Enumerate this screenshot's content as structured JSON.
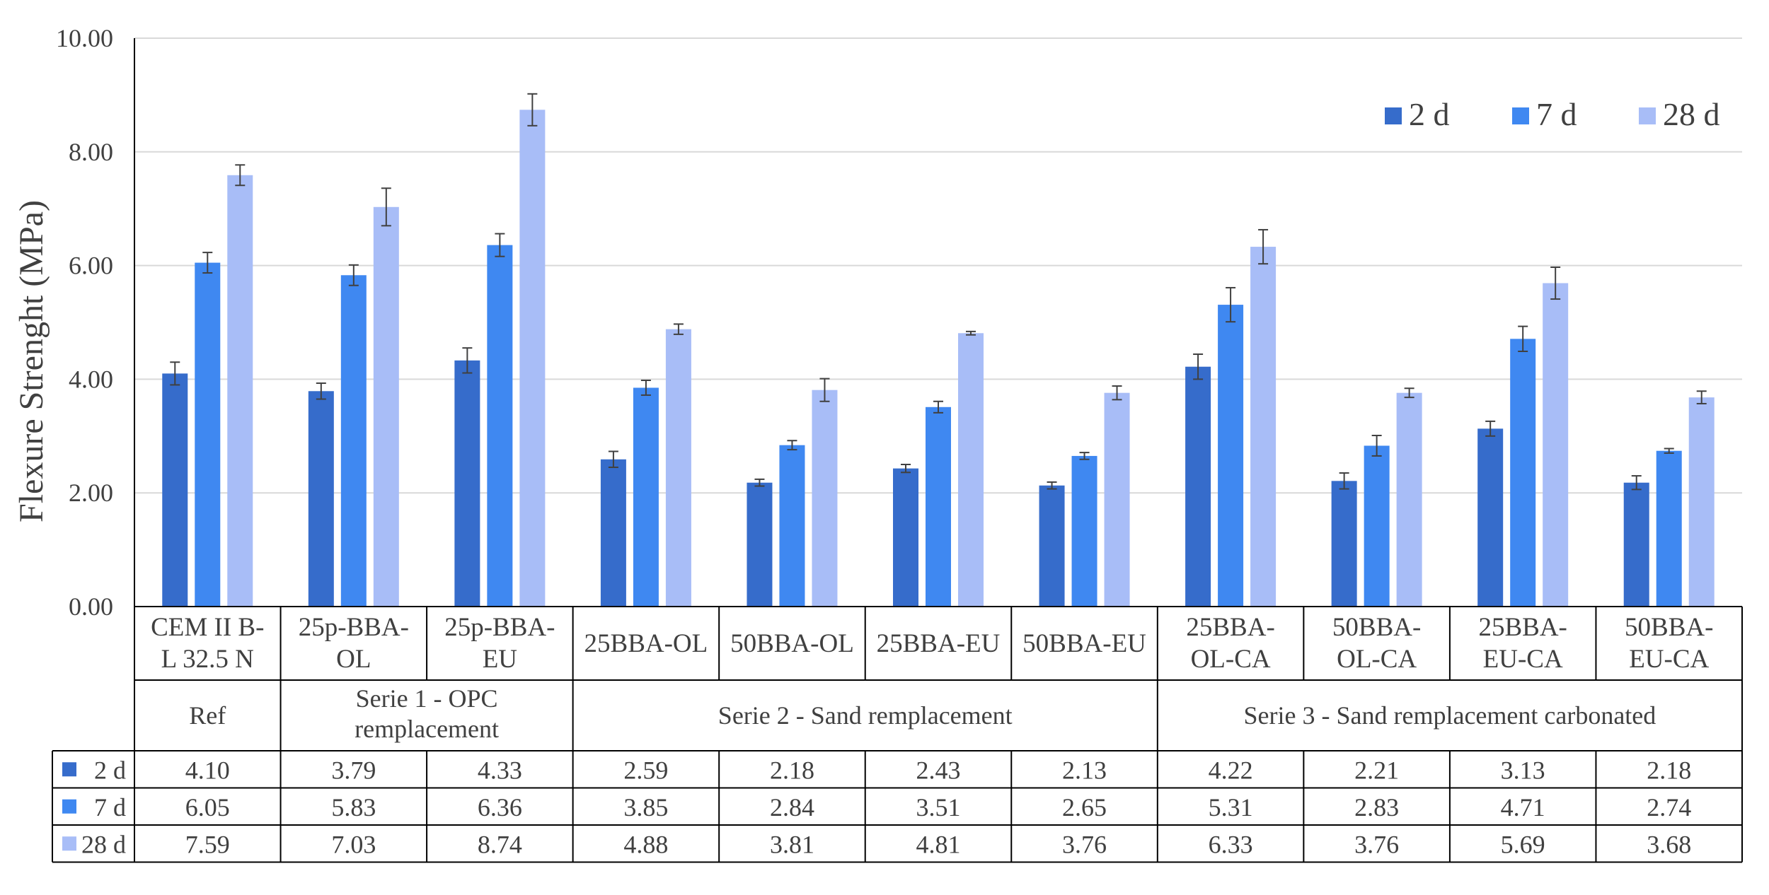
{
  "chart_data": {
    "type": "bar",
    "ylabel": "Flexure Strenght (MPa)",
    "ylim": [
      0,
      10
    ],
    "yticks": [
      "0.00",
      "2.00",
      "4.00",
      "6.00",
      "8.00",
      "10.00"
    ],
    "grid": true,
    "legend_position": "top-right",
    "categories": [
      {
        "line1": "CEM II B-",
        "line2": "L 32.5 N"
      },
      {
        "line1": "25p-BBA-",
        "line2": "OL"
      },
      {
        "line1": "25p-BBA-",
        "line2": "EU"
      },
      {
        "line1": "25BBA-OL",
        "line2": ""
      },
      {
        "line1": "50BBA-OL",
        "line2": ""
      },
      {
        "line1": "25BBA-EU",
        "line2": ""
      },
      {
        "line1": "50BBA-EU",
        "line2": ""
      },
      {
        "line1": "25BBA-",
        "line2": "OL-CA"
      },
      {
        "line1": "50BBA-",
        "line2": "OL-CA"
      },
      {
        "line1": "25BBA-",
        "line2": "EU-CA"
      },
      {
        "line1": "50BBA-",
        "line2": "EU-CA"
      }
    ],
    "groups": [
      {
        "line1": "Ref",
        "line2": "",
        "start": 0,
        "span": 1
      },
      {
        "line1": "Serie 1 - OPC",
        "line2": "remplacement",
        "start": 1,
        "span": 2
      },
      {
        "line1": "Serie 2 - Sand remplacement",
        "line2": "",
        "start": 3,
        "span": 4
      },
      {
        "line1": "Serie 3 - Sand remplacement carbonated",
        "line2": "",
        "start": 7,
        "span": 4
      }
    ],
    "series": [
      {
        "name": "2 d",
        "color": "#366ccb",
        "values": [
          4.1,
          3.79,
          4.33,
          2.59,
          2.18,
          2.43,
          2.13,
          4.22,
          2.21,
          3.13,
          2.18
        ],
        "labels": [
          "4.10",
          "3.79",
          "4.33",
          "2.59",
          "2.18",
          "2.43",
          "2.13",
          "4.22",
          "2.21",
          "3.13",
          "2.18"
        ],
        "errors": [
          0.2,
          0.14,
          0.22,
          0.14,
          0.06,
          0.07,
          0.06,
          0.22,
          0.14,
          0.13,
          0.12
        ]
      },
      {
        "name": "7 d",
        "color": "#3f88f1",
        "values": [
          6.05,
          5.83,
          6.36,
          3.85,
          2.84,
          3.51,
          2.65,
          5.31,
          2.83,
          4.71,
          2.74
        ],
        "labels": [
          "6.05",
          "5.83",
          "6.36",
          "3.85",
          "2.84",
          "3.51",
          "2.65",
          "5.31",
          "2.83",
          "4.71",
          "2.74"
        ],
        "errors": [
          0.18,
          0.18,
          0.2,
          0.13,
          0.08,
          0.1,
          0.06,
          0.3,
          0.18,
          0.22,
          0.04
        ]
      },
      {
        "name": "28 d",
        "color": "#a8bdf7",
        "values": [
          7.59,
          7.03,
          8.74,
          4.88,
          3.81,
          4.81,
          3.76,
          6.33,
          3.76,
          5.69,
          3.68
        ],
        "labels": [
          "7.59",
          "7.03",
          "8.74",
          "4.88",
          "3.81",
          "4.81",
          "3.76",
          "6.33",
          "3.76",
          "5.69",
          "3.68"
        ],
        "errors": [
          0.18,
          0.33,
          0.28,
          0.09,
          0.2,
          0.03,
          0.12,
          0.3,
          0.08,
          0.28,
          0.11
        ]
      }
    ]
  }
}
